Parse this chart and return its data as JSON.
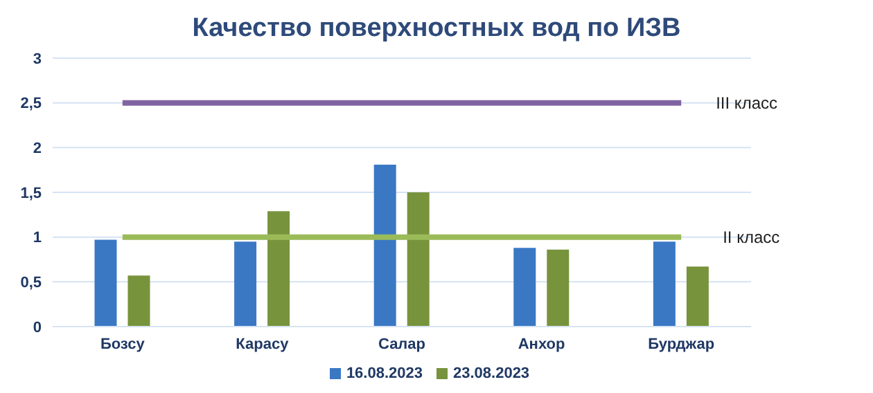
{
  "chart_data": {
    "type": "bar",
    "title": "Качество поверхностных вод по ИЗВ",
    "categories": [
      "Бозсу",
      "Карасу",
      "Салар",
      "Анхор",
      "Бурджар"
    ],
    "series": [
      {
        "name": "16.08.2023",
        "color": "#3a78c4",
        "values": [
          0.97,
          0.95,
          1.81,
          0.88,
          0.95
        ]
      },
      {
        "name": "23.08.2023",
        "color": "#77933c",
        "values": [
          0.57,
          1.29,
          1.5,
          0.86,
          0.67
        ]
      }
    ],
    "ylim": [
      0,
      3
    ],
    "yticks": [
      0,
      {
        "value": 0.5,
        "label": "0,5"
      },
      1,
      {
        "value": 1.5,
        "label": "1,5"
      },
      2,
      {
        "value": 2.5,
        "label": "2,5"
      },
      3
    ],
    "ref_lines": [
      {
        "axis": "y",
        "value": 2.5,
        "label": "III класс",
        "color": "#8064a2"
      },
      {
        "axis": "y",
        "value": 1,
        "label": "II класс",
        "color": "#9bbb59"
      }
    ],
    "grid": "y",
    "legend": "bottom"
  }
}
